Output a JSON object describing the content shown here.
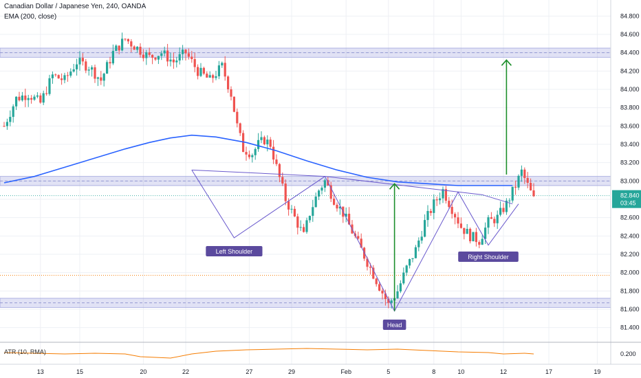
{
  "header": {
    "title": "Canadian Dollar / Japanese Yen, 240, OANDA",
    "ema_label": "EMA (200, close)",
    "atr_label": "ATR (10, RMA)"
  },
  "chart_data": {
    "type": "candlestick",
    "symbol": "CADJPY",
    "interval": "240",
    "source": "OANDA",
    "ylim": [
      81.3,
      84.9
    ],
    "y_ticks": [
      "84.800",
      "84.600",
      "84.400",
      "84.200",
      "84.000",
      "83.800",
      "83.600",
      "83.400",
      "83.200",
      "83.000",
      "82.800",
      "82.600",
      "82.400",
      "82.200",
      "82.000",
      "81.800",
      "81.600",
      "81.400"
    ],
    "x_ticks": [
      "13",
      "15",
      "20",
      "22",
      "27",
      "29",
      "Feb",
      "5",
      "8",
      "10",
      "12",
      "17",
      "19"
    ],
    "last_price": "82.840",
    "countdown": "03:45",
    "atr_value": "0.200",
    "price_path": [
      [
        0,
        83.6
      ],
      [
        4,
        83.9
      ],
      [
        8,
        83.95
      ],
      [
        12,
        83.85
      ],
      [
        16,
        84.15
      ],
      [
        20,
        84.1
      ],
      [
        24,
        84.3
      ],
      [
        28,
        84.25
      ],
      [
        32,
        84.1
      ],
      [
        36,
        84.4
      ],
      [
        40,
        84.55
      ],
      [
        44,
        84.45
      ],
      [
        48,
        84.35
      ],
      [
        52,
        84.4
      ],
      [
        56,
        84.3
      ],
      [
        60,
        84.4
      ],
      [
        64,
        84.2
      ],
      [
        68,
        84.1
      ],
      [
        72,
        84.25
      ],
      [
        75,
        83.95
      ],
      [
        77,
        83.6
      ],
      [
        79,
        83.35
      ],
      [
        82,
        83.3
      ],
      [
        84,
        83.4
      ],
      [
        86,
        83.45
      ],
      [
        88,
        83.4
      ],
      [
        90,
        83.15
      ],
      [
        93,
        82.8
      ],
      [
        96,
        82.6
      ],
      [
        99,
        82.4
      ],
      [
        101,
        82.65
      ],
      [
        104,
        82.9
      ],
      [
        106,
        83.0
      ],
      [
        109,
        82.8
      ],
      [
        112,
        82.65
      ],
      [
        115,
        82.45
      ],
      [
        118,
        82.25
      ],
      [
        121,
        82.05
      ],
      [
        124,
        81.85
      ],
      [
        127,
        81.65
      ],
      [
        130,
        81.8
      ],
      [
        133,
        82.05
      ],
      [
        136,
        82.25
      ],
      [
        139,
        82.55
      ],
      [
        142,
        82.75
      ],
      [
        145,
        82.9
      ],
      [
        148,
        82.7
      ],
      [
        151,
        82.5
      ],
      [
        154,
        82.4
      ],
      [
        157,
        82.35
      ],
      [
        160,
        82.55
      ],
      [
        163,
        82.6
      ],
      [
        166,
        82.75
      ],
      [
        169,
        82.95
      ],
      [
        171,
        83.1
      ],
      [
        173,
        82.95
      ],
      [
        175,
        82.8
      ]
    ],
    "ema_path": [
      [
        0,
        82.98
      ],
      [
        10,
        83.05
      ],
      [
        20,
        83.15
      ],
      [
        30,
        83.25
      ],
      [
        40,
        83.35
      ],
      [
        48,
        83.42
      ],
      [
        55,
        83.47
      ],
      [
        62,
        83.5
      ],
      [
        70,
        83.48
      ],
      [
        80,
        83.42
      ],
      [
        90,
        83.33
      ],
      [
        100,
        83.22
      ],
      [
        110,
        83.12
      ],
      [
        120,
        83.04
      ],
      [
        130,
        82.99
      ],
      [
        140,
        82.97
      ],
      [
        150,
        82.95
      ],
      [
        160,
        82.95
      ],
      [
        168,
        82.95
      ]
    ],
    "atr_path": [
      [
        0,
        0.22
      ],
      [
        10,
        0.21
      ],
      [
        20,
        0.2
      ],
      [
        30,
        0.21
      ],
      [
        40,
        0.2
      ],
      [
        45,
        0.16
      ],
      [
        50,
        0.15
      ],
      [
        55,
        0.14
      ],
      [
        62,
        0.2
      ],
      [
        70,
        0.24
      ],
      [
        80,
        0.26
      ],
      [
        90,
        0.27
      ],
      [
        100,
        0.28
      ],
      [
        110,
        0.27
      ],
      [
        120,
        0.26
      ],
      [
        130,
        0.27
      ],
      [
        140,
        0.25
      ],
      [
        150,
        0.23
      ],
      [
        160,
        0.22
      ],
      [
        165,
        0.2
      ],
      [
        172,
        0.21
      ],
      [
        175,
        0.2
      ]
    ],
    "annotations": {
      "left_shoulder": "Left Shoulder",
      "head": "Head",
      "right_shoulder": "Right Shoulder"
    },
    "levels": {
      "resistance_top": 84.4,
      "neckline_zone": 83.0,
      "support_bottom": 81.67,
      "orange_level": 81.97
    },
    "neckline": [
      [
        62,
        83.12
      ],
      [
        106,
        83.05
      ],
      [
        158,
        82.85
      ],
      [
        168,
        82.75
      ]
    ],
    "pattern_lines": [
      [
        62,
        83.12
      ],
      [
        76,
        82.38
      ],
      [
        106,
        83.05
      ],
      [
        129,
        81.58
      ],
      [
        150,
        82.88
      ],
      [
        160,
        82.3
      ],
      [
        170,
        82.75
      ]
    ],
    "targets": [
      {
        "from_x": 129,
        "from_y": 81.58,
        "to_y": 82.97
      },
      {
        "from_x": 166,
        "from_y": 83.07,
        "to_y": 84.32
      }
    ]
  }
}
